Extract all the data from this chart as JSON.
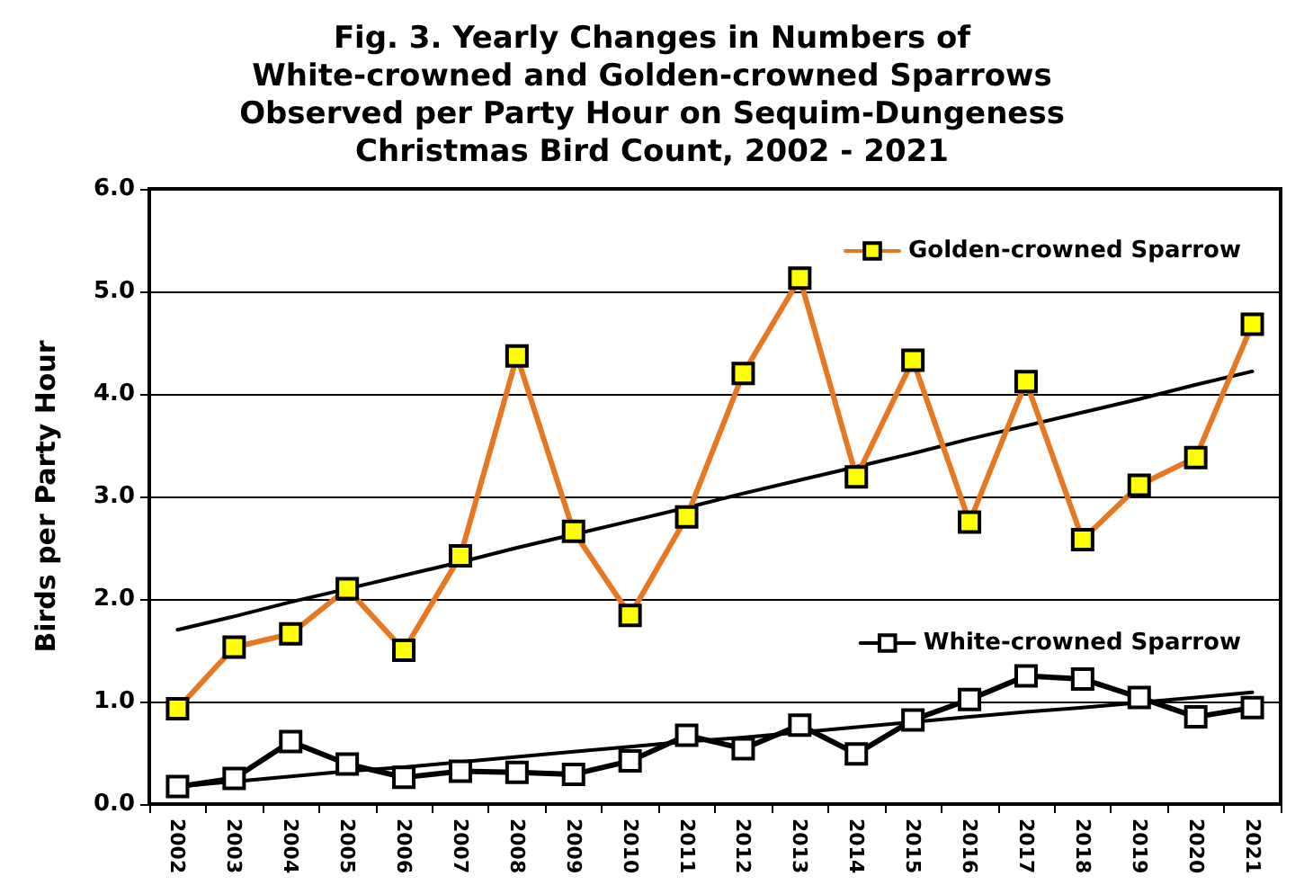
{
  "chart_data": {
    "type": "line",
    "title": "Fig. 3. Yearly Changes in Numbers of\nWhite-crowned and Golden-crowned Sparrows\nObserved per Party Hour on Sequim-Dungeness\nChristmas Bird Count, 2002 - 2021",
    "ylabel": "Birds per Party Hour",
    "categories": [
      "2002",
      "2003",
      "2004",
      "2005",
      "2006",
      "2007",
      "2008",
      "2009",
      "2010",
      "2011",
      "2012",
      "2013",
      "2014",
      "2015",
      "2016",
      "2017",
      "2018",
      "2019",
      "2020",
      "2021"
    ],
    "series": [
      {
        "name": "Golden-crowned Sparrow",
        "color": "#e87722",
        "values": [
          0.93,
          1.53,
          1.66,
          2.1,
          1.5,
          2.42,
          4.37,
          2.66,
          1.84,
          2.8,
          4.2,
          5.13,
          3.19,
          4.33,
          2.75,
          4.12,
          2.58,
          3.11,
          3.38,
          4.68
        ]
      },
      {
        "name": "White-crowned Sparrow",
        "color": "#000000",
        "values": [
          0.17,
          0.25,
          0.61,
          0.39,
          0.26,
          0.32,
          0.31,
          0.29,
          0.42,
          0.67,
          0.54,
          0.77,
          0.49,
          0.82,
          1.02,
          1.25,
          1.22,
          1.04,
          0.85,
          0.94
        ]
      },
      {
        "type": "line",
        "color": "#000000",
        "marker": "none",
        "values": [
          1.7,
          1.83,
          1.97,
          2.1,
          2.23,
          2.36,
          2.5,
          2.63,
          2.76,
          2.89,
          3.03,
          3.16,
          3.29,
          3.42,
          3.56,
          3.69,
          3.82,
          3.95,
          4.09,
          4.22
        ]
      },
      {
        "type": "line",
        "color": "#000000",
        "marker": "none",
        "values": [
          0.17,
          0.22,
          0.27,
          0.32,
          0.36,
          0.41,
          0.46,
          0.51,
          0.56,
          0.61,
          0.65,
          0.7,
          0.75,
          0.8,
          0.85,
          0.9,
          0.94,
          0.99,
          1.04,
          1.09
        ]
      }
    ],
    "ylim": [
      0,
      6
    ],
    "yticks": [
      {
        "value": 0,
        "label": "0.0"
      },
      {
        "value": 1,
        "label": "1.0"
      },
      {
        "value": 2,
        "label": "2.0"
      },
      {
        "value": 3,
        "label": "3.0"
      },
      {
        "value": 4,
        "label": "4.0"
      },
      {
        "value": 5,
        "label": "5.0"
      },
      {
        "value": 6,
        "label": "6.0"
      }
    ],
    "grid": "y",
    "legend": "right",
    "marker": "square",
    "line_style": "solid"
  }
}
